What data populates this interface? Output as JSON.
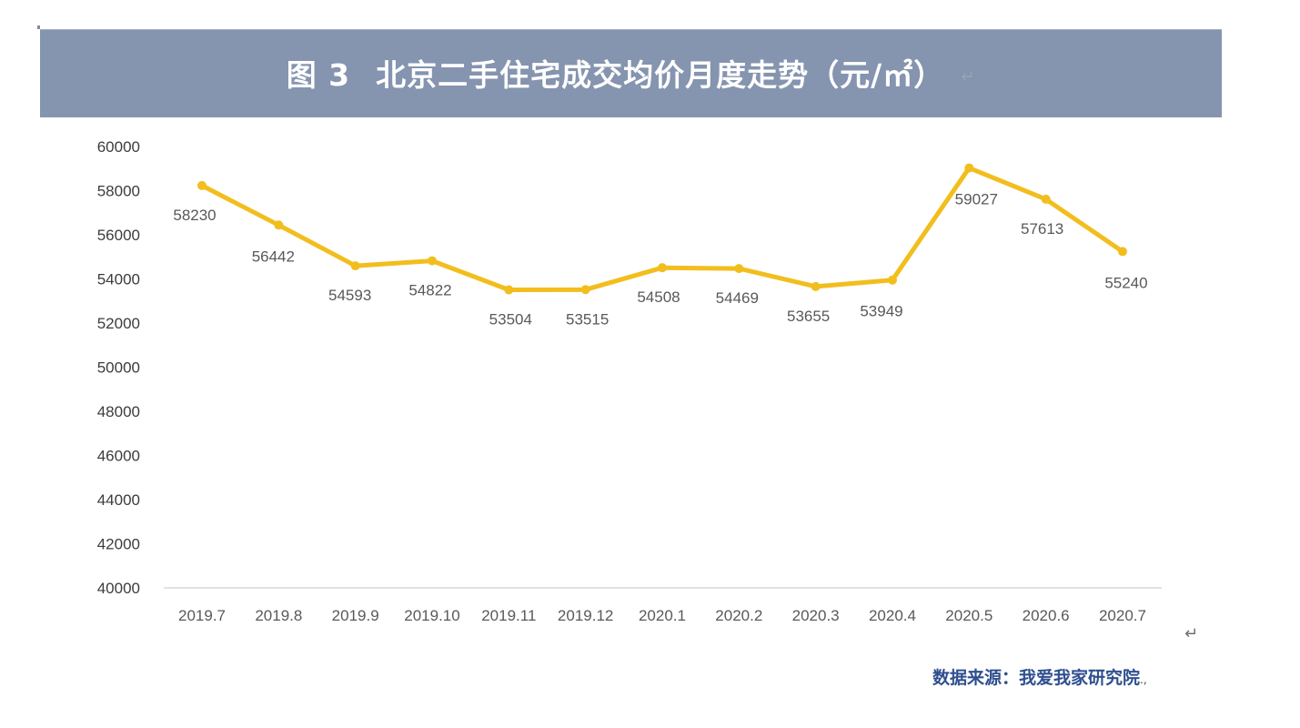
{
  "header": {
    "figure_label": "图 3",
    "title": "北京二手住宅成交均价月度走势（元/㎡）",
    "return_mark": "↵"
  },
  "source": {
    "text": "数据来源：我爱我家研究院",
    "trailing": ".,"
  },
  "para_mark": "↵",
  "colors": {
    "banner": "#8594AF",
    "line": "#F2BE1E",
    "axis": "#D9D9D9",
    "source_text": "#2F4F8F"
  },
  "chart_data": {
    "type": "line",
    "title": "图 3 北京二手住宅成交均价月度走势（元/㎡）",
    "xlabel": "",
    "ylabel": "元/㎡",
    "ylim": [
      40000,
      60000
    ],
    "yticks": [
      40000,
      42000,
      44000,
      46000,
      48000,
      50000,
      52000,
      54000,
      56000,
      58000,
      60000
    ],
    "grid": false,
    "legend": "none",
    "categories": [
      "2019.7",
      "2019.8",
      "2019.9",
      "2019.10",
      "2019.11",
      "2019.12",
      "2020.1",
      "2020.2",
      "2020.3",
      "2020.4",
      "2020.5",
      "2020.6",
      "2020.7"
    ],
    "series": [
      {
        "name": "成交均价",
        "color": "#F2BE1E",
        "values": [
          58230,
          56442,
          54593,
          54822,
          53504,
          53515,
          54508,
          54469,
          53655,
          53949,
          59027,
          57613,
          55240
        ]
      }
    ],
    "data_labels": true,
    "source": "数据来源：我爱我家研究院"
  }
}
